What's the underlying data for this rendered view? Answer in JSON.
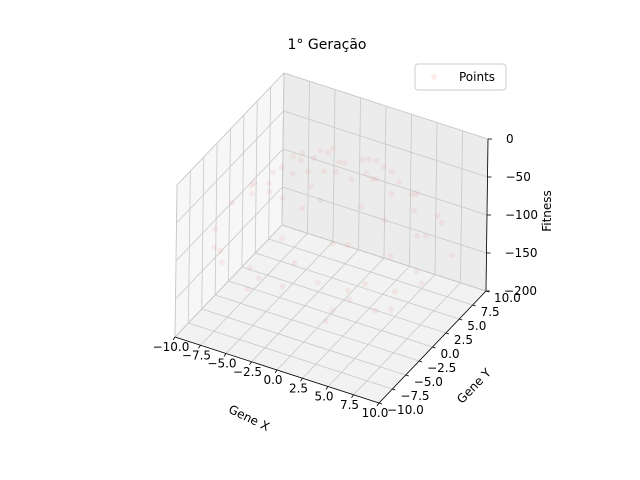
{
  "chart_data": {
    "type": "scatter",
    "title": "1° Geração",
    "xlabel": "Gene X",
    "ylabel": "Gene Y",
    "zlabel": "Fitness",
    "xlim": [
      -10,
      10
    ],
    "ylim": [
      -10,
      10
    ],
    "zlim": [
      -200,
      0
    ],
    "x_ticks": [
      "−10.0",
      "−7.5",
      "−5.0",
      "−2.5",
      "0.0",
      "2.5",
      "5.0",
      "7.5",
      "10.0"
    ],
    "y_ticks": [
      "−10.0",
      "−7.5",
      "−5.0",
      "−2.5",
      "0.0",
      "2.5",
      "5.0",
      "7.5",
      "10.0"
    ],
    "z_ticks": [
      "−200",
      "−150",
      "−100",
      "−50",
      "0"
    ],
    "x_tick_values": [
      -10,
      -7.5,
      -5,
      -2.5,
      0,
      2.5,
      5,
      7.5,
      10
    ],
    "y_tick_values": [
      -10,
      -7.5,
      -5,
      -2.5,
      0,
      2.5,
      5,
      7.5,
      10
    ],
    "z_tick_values": [
      -200,
      -150,
      -100,
      -50,
      0
    ],
    "grid": true,
    "legend": {
      "position": "top-right",
      "entries": [
        "Points"
      ]
    },
    "series": [
      {
        "name": "Points",
        "color": "#f08080",
        "alpha": 0.12,
        "x": [
          0.5,
          -1.2,
          2.3,
          -2.8,
          1.6,
          -0.4,
          3.5,
          -3.9,
          0.9,
          -1.8,
          4.1,
          -4.6,
          2.7,
          -0.3,
          5.2,
          -5.4,
          1.4,
          -2.6,
          6.0,
          -6.3,
          3.3,
          -3.7,
          0.1,
          6.8,
          -7.1,
          4.4,
          -1.1,
          7.5,
          -7.8,
          2.0,
          -4.9,
          8.1,
          -8.4,
          5.6,
          -2.9,
          8.7,
          -9.0,
          0.7,
          -6.2,
          9.3,
          -9.5,
          3.8,
          -3.4,
          6.6,
          -5.8,
          1.9,
          9.7,
          -9.8,
          4.9,
          -7.4,
          7.2,
          -1.5,
          8.9,
          -8.8,
          0.2,
          5.9,
          -4.2,
          2.8,
          -6.7,
          9.9,
          -2.2,
          4.6,
          -9.3,
          7.9,
          -0.8,
          3.1,
          -5.1,
          6.3,
          -3.0,
          8.4
        ],
        "y": [
          0.3,
          1.5,
          -0.9,
          -2.1,
          2.6,
          -3.2,
          0.8,
          1.9,
          -4.0,
          3.6,
          -2.5,
          -0.7,
          4.5,
          -5.0,
          1.2,
          3.0,
          5.6,
          -4.4,
          -1.6,
          -2.9,
          -6.1,
          4.8,
          6.7,
          2.4,
          -1.0,
          -5.5,
          -7.2,
          -3.3,
          3.9,
          7.4,
          6.0,
          0.5,
          -5.9,
          -7.6,
          8.0,
          -4.7,
          2.2,
          -8.3,
          7.5,
          -1.9,
          -3.6,
          8.6,
          -8.8,
          -6.4,
          5.3,
          9.0,
          4.1,
          0.0,
          -9.1,
          -6.7,
          6.9,
          9.4,
          -5.8,
          5.1,
          -9.6,
          -7.9,
          8.9,
          9.7,
          -7.7,
          -2.0,
          -9.4,
          -9.8,
          6.2,
          -6.9,
          9.9,
          -8.5,
          8.3,
          7.8,
          -9.9,
          1.6
        ],
        "z": [
          -0.3,
          -3.7,
          -6.1,
          -12.3,
          -9.3,
          -10.4,
          -12.9,
          -18.8,
          -16.8,
          -16.2,
          -23.1,
          -21.6,
          -27.6,
          -25.1,
          -28.5,
          -38.2,
          -33.3,
          -25.9,
          -38.6,
          -48.1,
          -48.1,
          -36.7,
          -44.9,
          -52.0,
          -51.4,
          -49.6,
          -53.1,
          -67.1,
          -76.0,
          -58.8,
          -60.0,
          -65.9,
          -105.4,
          -89.1,
          -72.4,
          -97.8,
          -85.9,
          -69.4,
          -94.7,
          -90.1,
          -103.2,
          -88.4,
          -89.0,
          -84.6,
          -61.7,
          -84.6,
          -110.9,
          -96.0,
          -106.8,
          -99.6,
          -99.4,
          -90.6,
          -112.8,
          -103.5,
          -92.2,
          -97.2,
          -96.8,
          -102.0,
          -104.2,
          -102.0,
          -93.2,
          -117.2,
          -125.0,
          -110.2,
          -98.7,
          -82.0,
          -95.5,
          -100.5,
          -107.0,
          -73.1
        ]
      }
    ]
  }
}
